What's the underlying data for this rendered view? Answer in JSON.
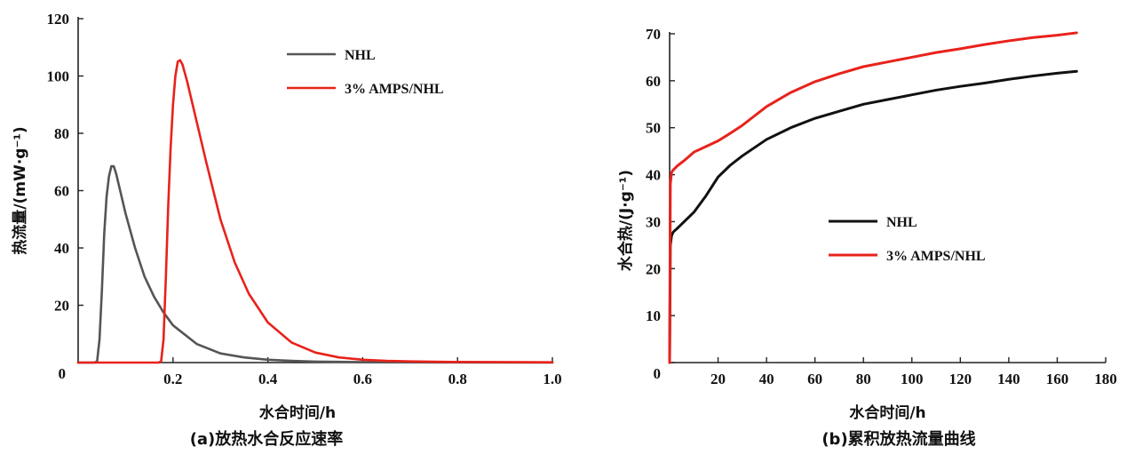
{
  "chart_data": [
    {
      "type": "line",
      "caption": "(a)放热水合反应速率",
      "xlabel": "水合时间/h",
      "ylabel": "热流量/(mW·g⁻¹)",
      "xlim": [
        0,
        1.0
      ],
      "ylim": [
        0,
        120
      ],
      "xticks": [
        "0.2",
        "0.4",
        "0.6",
        "0.8",
        "1.0"
      ],
      "xtick_values": [
        0.2,
        0.4,
        0.6,
        0.8,
        1.0
      ],
      "yticks": [
        "0",
        "20",
        "40",
        "60",
        "80",
        "100",
        "120"
      ],
      "ytick_values": [
        0,
        20,
        40,
        60,
        80,
        100,
        120
      ],
      "grid": false,
      "legend_position": "top-right",
      "series": [
        {
          "name": "NHL",
          "color": "#555555",
          "x": [
            0.0,
            0.035,
            0.04,
            0.045,
            0.05,
            0.055,
            0.06,
            0.065,
            0.07,
            0.075,
            0.08,
            0.09,
            0.1,
            0.12,
            0.14,
            0.16,
            0.18,
            0.2,
            0.25,
            0.3,
            0.35,
            0.4,
            0.45,
            0.5,
            0.55,
            0.6,
            0.7,
            0.8,
            1.0
          ],
          "y": [
            0,
            0,
            0.5,
            8,
            25,
            45,
            58,
            65,
            68.5,
            68.5,
            66,
            59,
            52,
            40,
            30,
            23,
            17.5,
            13,
            6.5,
            3.2,
            1.8,
            1.0,
            0.6,
            0.35,
            0.25,
            0.15,
            0.1,
            0.05,
            0.0
          ]
        },
        {
          "name": "3% AMPS/NHL",
          "color": "#e8221b",
          "x": [
            0.0,
            0.17,
            0.175,
            0.18,
            0.185,
            0.19,
            0.195,
            0.2,
            0.205,
            0.21,
            0.215,
            0.22,
            0.23,
            0.25,
            0.27,
            0.3,
            0.33,
            0.36,
            0.4,
            0.45,
            0.5,
            0.55,
            0.6,
            0.65,
            0.7,
            0.8,
            1.0
          ],
          "y": [
            0,
            0,
            0.5,
            8,
            30,
            55,
            75,
            90,
            100,
            105,
            105.5,
            104,
            98,
            84,
            70,
            50,
            35,
            24,
            14,
            7,
            3.5,
            1.8,
            1.0,
            0.6,
            0.4,
            0.2,
            0.1
          ]
        }
      ]
    },
    {
      "type": "line",
      "caption": "(b)累积放热流量曲线",
      "xlabel": "水合时间/h",
      "ylabel": "水合热/(J·g⁻¹)",
      "xlim": [
        0,
        180
      ],
      "ylim": [
        0,
        70
      ],
      "xticks": [
        "20",
        "40",
        "60",
        "80",
        "100",
        "120",
        "140",
        "160",
        "180"
      ],
      "xtick_values": [
        20,
        40,
        60,
        80,
        100,
        120,
        140,
        160,
        180
      ],
      "yticks": [
        "0",
        "10",
        "20",
        "30",
        "40",
        "50",
        "60",
        "70"
      ],
      "ytick_values": [
        0,
        10,
        20,
        30,
        40,
        50,
        60,
        70
      ],
      "grid": false,
      "legend_position": "center-right",
      "series": [
        {
          "name": "NHL",
          "color": "#111111",
          "x": [
            0,
            0.3,
            0.8,
            1.5,
            3,
            6,
            10,
            15,
            20,
            25,
            30,
            40,
            50,
            60,
            70,
            80,
            90,
            100,
            110,
            120,
            130,
            140,
            150,
            160,
            168
          ],
          "y": [
            0,
            25,
            27,
            27.8,
            28.5,
            30,
            32,
            35.5,
            39.5,
            42,
            44,
            47.5,
            50,
            52,
            53.5,
            55,
            56,
            57,
            58,
            58.8,
            59.5,
            60.3,
            61,
            61.6,
            62
          ]
        },
        {
          "name": "3% AMPS/NHL",
          "color": "#e8221b",
          "x": [
            0,
            0.3,
            0.8,
            1.5,
            3,
            6,
            10,
            15,
            20,
            25,
            30,
            35,
            40,
            50,
            60,
            70,
            80,
            90,
            100,
            110,
            120,
            130,
            140,
            150,
            160,
            168
          ],
          "y": [
            0,
            38,
            40.5,
            41,
            41.8,
            43,
            44.8,
            46,
            47.2,
            48.8,
            50.5,
            52.5,
            54.5,
            57.5,
            59.8,
            61.5,
            63,
            64,
            65,
            66,
            66.8,
            67.7,
            68.5,
            69.2,
            69.7,
            70.2
          ]
        }
      ]
    }
  ]
}
